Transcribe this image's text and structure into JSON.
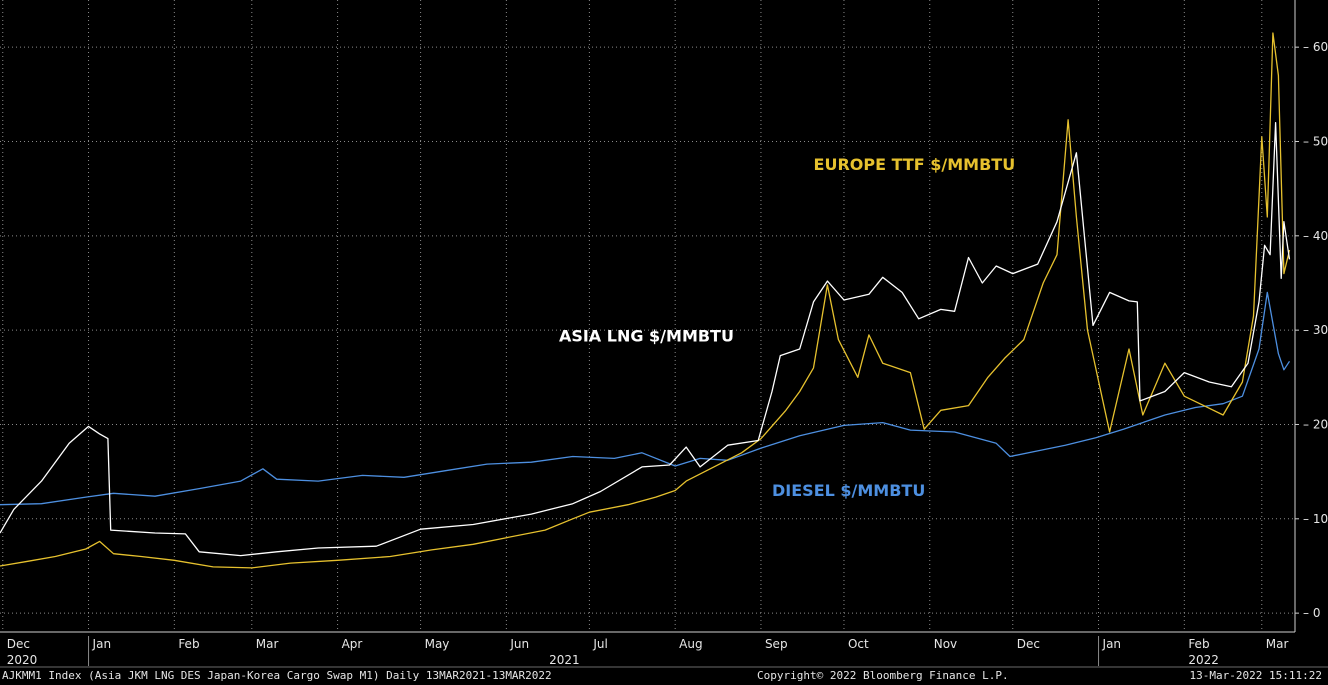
{
  "chart_data": {
    "type": "line",
    "y_axis": {
      "position": "right",
      "range": [
        -2,
        65
      ],
      "ticks": [
        0,
        10,
        20,
        30,
        40,
        50,
        60
      ]
    },
    "x_axis": {
      "range": [
        "2020-11-30",
        "2022-03-13"
      ],
      "month_ticks": [
        {
          "label": "Dec",
          "date": "2020-12-01"
        },
        {
          "label": "Jan",
          "date": "2021-01-01"
        },
        {
          "label": "Feb",
          "date": "2021-02-01"
        },
        {
          "label": "Mar",
          "date": "2021-03-01"
        },
        {
          "label": "Apr",
          "date": "2021-04-01"
        },
        {
          "label": "May",
          "date": "2021-05-01"
        },
        {
          "label": "Jun",
          "date": "2021-06-01"
        },
        {
          "label": "Jul",
          "date": "2021-07-01"
        },
        {
          "label": "Aug",
          "date": "2021-08-01"
        },
        {
          "label": "Sep",
          "date": "2021-09-01"
        },
        {
          "label": "Oct",
          "date": "2021-10-01"
        },
        {
          "label": "Nov",
          "date": "2021-11-01"
        },
        {
          "label": "Dec",
          "date": "2021-12-01"
        },
        {
          "label": "Jan",
          "date": "2022-01-01"
        },
        {
          "label": "Feb",
          "date": "2022-02-01"
        },
        {
          "label": "Mar",
          "date": "2022-03-01"
        }
      ],
      "year_labels": [
        {
          "label": "2020",
          "date": "2020-12-01"
        },
        {
          "label": "2021",
          "date": "2021-06-15"
        },
        {
          "label": "2022",
          "date": "2022-02-01"
        }
      ],
      "year_separators": [
        "2021-01-01",
        "2022-01-01"
      ]
    },
    "grid": true,
    "series": [
      {
        "name": "DIESEL $/MMBTU",
        "color": "#4d8fe0",
        "label_pos": {
          "date": "2021-09-05",
          "value": 12.4
        },
        "points": [
          [
            "2020-11-30",
            11.5
          ],
          [
            "2020-12-15",
            11.6
          ],
          [
            "2020-12-31",
            12.3
          ],
          [
            "2021-01-10",
            12.7
          ],
          [
            "2021-01-25",
            12.4
          ],
          [
            "2021-02-10",
            13.2
          ],
          [
            "2021-02-25",
            14.0
          ],
          [
            "2021-03-05",
            15.3
          ],
          [
            "2021-03-10",
            14.2
          ],
          [
            "2021-03-25",
            14.0
          ],
          [
            "2021-04-10",
            14.6
          ],
          [
            "2021-04-25",
            14.4
          ],
          [
            "2021-05-10",
            15.1
          ],
          [
            "2021-05-25",
            15.8
          ],
          [
            "2021-06-10",
            16.0
          ],
          [
            "2021-06-25",
            16.6
          ],
          [
            "2021-07-10",
            16.4
          ],
          [
            "2021-07-20",
            17.0
          ],
          [
            "2021-08-01",
            15.6
          ],
          [
            "2021-08-10",
            16.4
          ],
          [
            "2021-08-20",
            16.2
          ],
          [
            "2021-09-01",
            17.5
          ],
          [
            "2021-09-15",
            18.8
          ],
          [
            "2021-10-01",
            19.9
          ],
          [
            "2021-10-15",
            20.2
          ],
          [
            "2021-10-25",
            19.4
          ],
          [
            "2021-11-10",
            19.2
          ],
          [
            "2021-11-25",
            18.0
          ],
          [
            "2021-11-30",
            16.6
          ],
          [
            "2021-12-10",
            17.2
          ],
          [
            "2021-12-20",
            17.8
          ],
          [
            "2021-12-31",
            18.6
          ],
          [
            "2022-01-10",
            19.5
          ],
          [
            "2022-01-25",
            21.0
          ],
          [
            "2022-02-05",
            21.8
          ],
          [
            "2022-02-15",
            22.2
          ],
          [
            "2022-02-22",
            23.0
          ],
          [
            "2022-02-28",
            28.0
          ],
          [
            "2022-03-03",
            34.0
          ],
          [
            "2022-03-07",
            27.5
          ],
          [
            "2022-03-09",
            25.8
          ],
          [
            "2022-03-11",
            26.7
          ]
        ]
      },
      {
        "name": "EUROPE TTF $/MMBTU",
        "color": "#e6c12e",
        "label_pos": {
          "date": "2021-09-20",
          "value": 47.0
        },
        "points": [
          [
            "2020-11-30",
            5.0
          ],
          [
            "2020-12-10",
            5.5
          ],
          [
            "2020-12-20",
            6.0
          ],
          [
            "2020-12-31",
            6.8
          ],
          [
            "2021-01-05",
            7.6
          ],
          [
            "2021-01-10",
            6.3
          ],
          [
            "2021-01-20",
            6.0
          ],
          [
            "2021-02-01",
            5.6
          ],
          [
            "2021-02-15",
            4.9
          ],
          [
            "2021-03-01",
            4.8
          ],
          [
            "2021-03-15",
            5.3
          ],
          [
            "2021-04-01",
            5.6
          ],
          [
            "2021-04-20",
            6.0
          ],
          [
            "2021-05-05",
            6.7
          ],
          [
            "2021-05-20",
            7.3
          ],
          [
            "2021-06-01",
            8.0
          ],
          [
            "2021-06-15",
            8.8
          ],
          [
            "2021-06-25",
            10.0
          ],
          [
            "2021-07-01",
            10.7
          ],
          [
            "2021-07-15",
            11.5
          ],
          [
            "2021-07-25",
            12.3
          ],
          [
            "2021-08-01",
            13.0
          ],
          [
            "2021-08-05",
            14.0
          ],
          [
            "2021-08-15",
            15.5
          ],
          [
            "2021-08-25",
            17.0
          ],
          [
            "2021-09-01",
            18.5
          ],
          [
            "2021-09-10",
            21.5
          ],
          [
            "2021-09-15",
            23.5
          ],
          [
            "2021-09-20",
            26.0
          ],
          [
            "2021-09-25",
            34.8
          ],
          [
            "2021-09-29",
            29.0
          ],
          [
            "2021-10-06",
            25.0
          ],
          [
            "2021-10-10",
            29.5
          ],
          [
            "2021-10-15",
            26.5
          ],
          [
            "2021-10-25",
            25.5
          ],
          [
            "2021-10-30",
            19.5
          ],
          [
            "2021-11-05",
            21.5
          ],
          [
            "2021-11-15",
            22.0
          ],
          [
            "2021-11-22",
            25.0
          ],
          [
            "2021-11-28",
            27.0
          ],
          [
            "2021-12-05",
            29.0
          ],
          [
            "2021-12-12",
            35.0
          ],
          [
            "2021-12-17",
            38.0
          ],
          [
            "2021-12-21",
            52.3
          ],
          [
            "2021-12-24",
            42.0
          ],
          [
            "2021-12-28",
            30.0
          ],
          [
            "2022-01-05",
            19.2
          ],
          [
            "2022-01-12",
            28.0
          ],
          [
            "2022-01-17",
            21.0
          ],
          [
            "2022-01-25",
            26.5
          ],
          [
            "2022-02-01",
            23.0
          ],
          [
            "2022-02-08",
            22.0
          ],
          [
            "2022-02-15",
            21.0
          ],
          [
            "2022-02-22",
            24.5
          ],
          [
            "2022-02-26",
            31.5
          ],
          [
            "2022-03-01",
            50.5
          ],
          [
            "2022-03-03",
            42.0
          ],
          [
            "2022-03-05",
            61.5
          ],
          [
            "2022-03-07",
            57.0
          ],
          [
            "2022-03-09",
            36.0
          ],
          [
            "2022-03-11",
            38.5
          ]
        ]
      },
      {
        "name": "ASIA LNG $/MMBTU",
        "color": "#ffffff",
        "label_pos": {
          "date": "2021-06-20",
          "value": 28.8
        },
        "points": [
          [
            "2020-11-30",
            8.5
          ],
          [
            "2020-12-05",
            11.0
          ],
          [
            "2020-12-15",
            14.0
          ],
          [
            "2020-12-25",
            18.0
          ],
          [
            "2021-01-01",
            19.8
          ],
          [
            "2021-01-05",
            19.0
          ],
          [
            "2021-01-08",
            18.5
          ],
          [
            "2021-01-09",
            8.8
          ],
          [
            "2021-01-25",
            8.5
          ],
          [
            "2021-02-05",
            8.4
          ],
          [
            "2021-02-10",
            6.5
          ],
          [
            "2021-02-25",
            6.1
          ],
          [
            "2021-03-10",
            6.5
          ],
          [
            "2021-03-25",
            6.9
          ],
          [
            "2021-04-15",
            7.1
          ],
          [
            "2021-05-01",
            8.9
          ],
          [
            "2021-05-20",
            9.4
          ],
          [
            "2021-06-10",
            10.5
          ],
          [
            "2021-06-25",
            11.6
          ],
          [
            "2021-07-05",
            12.9
          ],
          [
            "2021-07-20",
            15.5
          ],
          [
            "2021-07-30",
            15.7
          ],
          [
            "2021-08-05",
            17.6
          ],
          [
            "2021-08-10",
            15.5
          ],
          [
            "2021-08-20",
            17.8
          ],
          [
            "2021-08-31",
            18.3
          ],
          [
            "2021-09-05",
            23.5
          ],
          [
            "2021-09-08",
            27.3
          ],
          [
            "2021-09-15",
            28.0
          ],
          [
            "2021-09-20",
            33.0
          ],
          [
            "2021-09-25",
            35.2
          ],
          [
            "2021-10-01",
            33.2
          ],
          [
            "2021-10-10",
            33.8
          ],
          [
            "2021-10-15",
            35.6
          ],
          [
            "2021-10-22",
            34.0
          ],
          [
            "2021-10-28",
            31.2
          ],
          [
            "2021-11-05",
            32.2
          ],
          [
            "2021-11-10",
            32.0
          ],
          [
            "2021-11-15",
            37.7
          ],
          [
            "2021-11-20",
            35.0
          ],
          [
            "2021-11-25",
            36.8
          ],
          [
            "2021-12-01",
            36.0
          ],
          [
            "2021-12-10",
            37.0
          ],
          [
            "2021-12-17",
            41.5
          ],
          [
            "2021-12-24",
            48.8
          ],
          [
            "2021-12-30",
            30.5
          ],
          [
            "2022-01-05",
            34.0
          ],
          [
            "2022-01-12",
            33.1
          ],
          [
            "2022-01-15",
            33.0
          ],
          [
            "2022-01-16",
            22.5
          ],
          [
            "2022-01-25",
            23.5
          ],
          [
            "2022-02-01",
            25.5
          ],
          [
            "2022-02-10",
            24.5
          ],
          [
            "2022-02-18",
            24.0
          ],
          [
            "2022-02-24",
            26.5
          ],
          [
            "2022-02-28",
            33.0
          ],
          [
            "2022-03-02",
            39.0
          ],
          [
            "2022-03-04",
            38.0
          ],
          [
            "2022-03-06",
            52.0
          ],
          [
            "2022-03-08",
            35.5
          ],
          [
            "2022-03-09",
            41.5
          ],
          [
            "2022-03-11",
            37.5
          ]
        ]
      }
    ]
  },
  "footer": {
    "ticker_text": "AJKMM1 Index (Asia JKM LNG DES Japan-Korea Cargo Swap M1)  Daily 13MAR2021-13MAR2022",
    "copyright": "Copyright© 2022 Bloomberg Finance L.P.",
    "timestamp": "13-Mar-2022 15:11:22"
  }
}
